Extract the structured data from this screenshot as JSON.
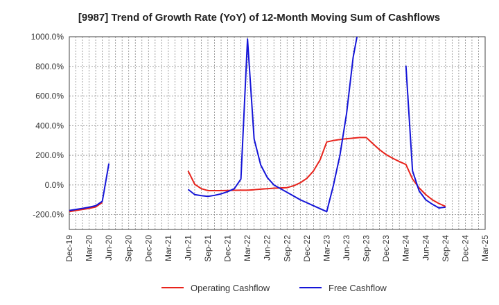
{
  "chart_data": {
    "type": "line",
    "title": "[9987]  Trend of Growth Rate (YoY) of 12-Month Moving Sum of Cashflows",
    "xlabel": "",
    "ylabel": "",
    "ylim": [
      -300,
      1000
    ],
    "yticks": [
      -200,
      0,
      200,
      400,
      600,
      800,
      1000
    ],
    "ytick_labels": [
      "-200.0%",
      "0.0%",
      "200.0%",
      "400.0%",
      "600.0%",
      "800.0%",
      "1000.0%"
    ],
    "xtick_labels": [
      "Dec-19",
      "Mar-20",
      "Jun-20",
      "Sep-20",
      "Dec-20",
      "Mar-21",
      "Jun-21",
      "Sep-21",
      "Dec-21",
      "Mar-22",
      "Jun-22",
      "Sep-22",
      "Dec-22",
      "Mar-23",
      "Jun-23",
      "Sep-23",
      "Dec-23",
      "Mar-24",
      "Jun-24",
      "Sep-24",
      "Dec-24",
      "Mar-25"
    ],
    "months": [
      "Dec-19",
      "Jan-20",
      "Feb-20",
      "Mar-20",
      "Apr-20",
      "May-20",
      "Jun-20",
      "Jul-20",
      "Aug-20",
      "Sep-20",
      "Oct-20",
      "Nov-20",
      "Dec-20",
      "Jan-21",
      "Feb-21",
      "Mar-21",
      "Apr-21",
      "May-21",
      "Jun-21",
      "Jul-21",
      "Aug-21",
      "Sep-21",
      "Oct-21",
      "Nov-21",
      "Dec-21",
      "Jan-22",
      "Feb-22",
      "Mar-22",
      "Apr-22",
      "May-22",
      "Jun-22",
      "Jul-22",
      "Aug-22",
      "Sep-22",
      "Oct-22",
      "Nov-22",
      "Dec-22",
      "Jan-23",
      "Feb-23",
      "Mar-23",
      "Apr-23",
      "May-23",
      "Jun-23",
      "Jul-23",
      "Aug-23",
      "Sep-23",
      "Oct-23",
      "Nov-23",
      "Dec-23",
      "Jan-24",
      "Feb-24",
      "Mar-24",
      "Apr-24",
      "May-24",
      "Jun-24",
      "Jul-24",
      "Aug-24",
      "Sep-24",
      "Oct-24",
      "Nov-24",
      "Dec-24",
      "Jan-25",
      "Feb-25",
      "Mar-25"
    ],
    "grid": true,
    "legend_position": "bottom",
    "series": [
      {
        "name": "Operating Cashflow",
        "color": "#e8231b",
        "values": [
          -180,
          -172,
          -165,
          -158,
          -148,
          -118,
          null,
          null,
          null,
          null,
          null,
          null,
          null,
          null,
          null,
          null,
          null,
          null,
          95,
          5,
          -25,
          -38,
          -38,
          -38,
          -37,
          -36,
          -35,
          -35,
          -32,
          -28,
          -25,
          -22,
          -20,
          -18,
          -5,
          15,
          45,
          95,
          170,
          290,
          300,
          307,
          312,
          316,
          320,
          320,
          278,
          238,
          205,
          180,
          158,
          138,
          40,
          -20,
          -65,
          -100,
          -125,
          -145,
          null,
          null,
          null,
          null,
          null,
          null
        ]
      },
      {
        "name": "Free Cashflow",
        "color": "#1515d8",
        "values": [
          -172,
          -165,
          -158,
          -150,
          -140,
          -110,
          145,
          null,
          null,
          null,
          null,
          null,
          null,
          null,
          null,
          null,
          null,
          null,
          -30,
          -65,
          -72,
          -77,
          -70,
          -60,
          -45,
          -25,
          40,
          985,
          310,
          135,
          50,
          0,
          -25,
          -50,
          -75,
          -100,
          -120,
          -140,
          -160,
          -180,
          -5,
          200,
          480,
          860,
          1100,
          null,
          null,
          null,
          null,
          null,
          null,
          805,
          95,
          -40,
          -100,
          -130,
          -155,
          -150,
          null,
          null,
          null,
          null,
          null,
          null
        ]
      }
    ]
  }
}
